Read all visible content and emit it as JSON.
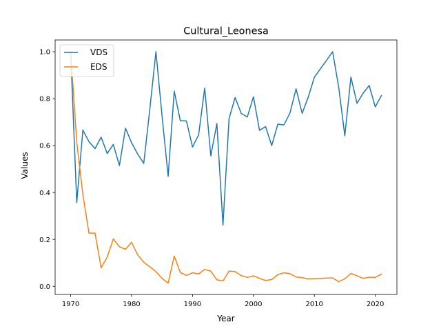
{
  "chart_data": {
    "type": "line",
    "title": "Cultural_Leonesa",
    "xlabel": "Year",
    "ylabel": "Values",
    "xlim": [
      1967.45,
      2023.55
    ],
    "ylim": [
      -0.0345,
      1.05
    ],
    "xticks": [
      1970,
      1980,
      1990,
      2000,
      2010,
      2020
    ],
    "yticks": [
      0.0,
      0.2,
      0.4,
      0.6,
      0.8,
      1.0
    ],
    "xtick_labels": [
      "1970",
      "1980",
      "1990",
      "2000",
      "2010",
      "2020"
    ],
    "ytick_labels": [
      "0.0",
      "0.2",
      "0.4",
      "0.6",
      "0.8",
      "1.0"
    ],
    "grid": false,
    "legend_position": "top-left",
    "x": [
      1970,
      1971,
      1972,
      1973,
      1974,
      1975,
      1976,
      1977,
      1978,
      1979,
      1980,
      1981,
      1982,
      1983,
      1984,
      1985,
      1986,
      1987,
      1988,
      1989,
      1990,
      1991,
      1992,
      1993,
      1994,
      1995,
      1996,
      1997,
      1998,
      1999,
      2000,
      2001,
      2002,
      2003,
      2004,
      2005,
      2006,
      2007,
      2008,
      2009,
      2010,
      2013,
      2014,
      2015,
      2016,
      2017,
      2018,
      2019,
      2020,
      2021
    ],
    "series": [
      {
        "name": "VDS",
        "color": "#1f77b4",
        "values": [
          1.0,
          0.357,
          0.666,
          0.617,
          0.587,
          0.636,
          0.566,
          0.605,
          0.515,
          0.674,
          0.612,
          0.564,
          0.524,
          0.757,
          1.0,
          0.727,
          0.469,
          0.832,
          0.706,
          0.705,
          0.594,
          0.645,
          0.845,
          0.556,
          0.694,
          0.261,
          0.715,
          0.805,
          0.737,
          0.722,
          0.808,
          0.665,
          0.681,
          0.6,
          0.691,
          0.688,
          0.739,
          0.842,
          0.737,
          0.807,
          0.891,
          1.0,
          0.848,
          0.642,
          0.892,
          0.78,
          0.823,
          0.856,
          0.765,
          0.813
        ]
      },
      {
        "name": "EDS",
        "color": "#ff7f0e",
        "values": [
          1.0,
          0.614,
          0.392,
          0.227,
          0.227,
          0.079,
          0.125,
          0.202,
          0.169,
          0.158,
          0.188,
          0.134,
          0.103,
          0.083,
          0.063,
          0.034,
          0.014,
          0.129,
          0.059,
          0.047,
          0.058,
          0.053,
          0.072,
          0.065,
          0.028,
          0.023,
          0.065,
          0.063,
          0.046,
          0.038,
          0.045,
          0.034,
          0.025,
          0.029,
          0.05,
          0.058,
          0.054,
          0.04,
          0.037,
          0.032,
          0.033,
          0.036,
          0.02,
          0.032,
          0.055,
          0.045,
          0.034,
          0.039,
          0.038,
          0.052
        ]
      }
    ]
  }
}
